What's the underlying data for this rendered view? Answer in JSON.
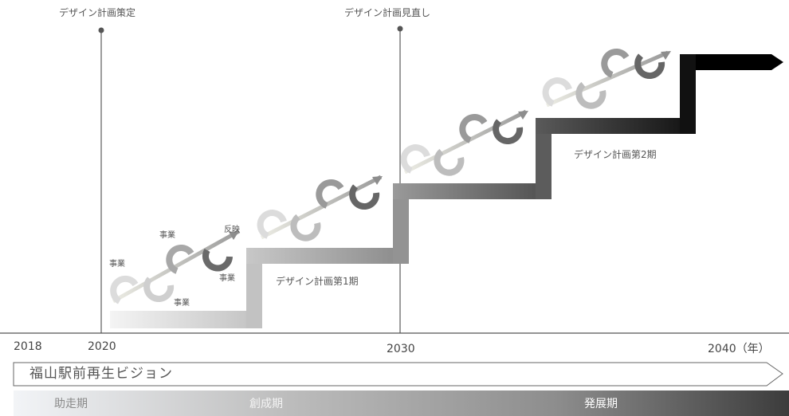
{
  "milestones": {
    "plan_created": "デザイン計画策定",
    "plan_revised": "デザイン計画見直し"
  },
  "cycle_labels": {
    "jigyo_1": "事業",
    "jigyo_2": "事業",
    "jigyo_3": "事業",
    "jigyo_4": "事業",
    "hanei": "反映"
  },
  "plan_phases": {
    "phase1": "デザイン計画第1期",
    "phase2": "デザイン計画第2期"
  },
  "years": {
    "y2018": "2018",
    "y2020": "2020",
    "y2030": "2030",
    "y2040": "2040（年）"
  },
  "vision": "福山駅前再生ビジョン",
  "phases": {
    "p1": "助走期",
    "p2": "創成期",
    "p3": "発展期"
  },
  "colors": {
    "phase_band_start": "#f2f4f7",
    "phase_band_mid": "#a9a9a9",
    "phase_band_end": "#3c3c3c",
    "marker": "#555555"
  }
}
